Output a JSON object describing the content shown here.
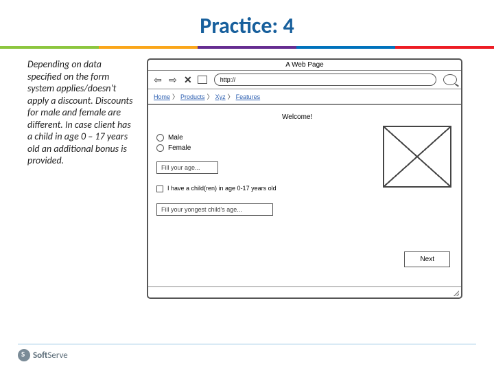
{
  "title": "Practice: 4",
  "description": "Depending on data specified on the form system applies/doesn't apply a discount. Discounts for male and female are different. In case client has a child in age 0 – 17 years old an additional bonus is provided.",
  "wireframe": {
    "window_title": "A Web Page",
    "url_text": "http://",
    "breadcrumbs": [
      "Home",
      "Products",
      "Xyz",
      "Features"
    ],
    "welcome": "Welcome!",
    "radio_male": "Male",
    "radio_female": "Female",
    "age_placeholder": "Fill your age...",
    "checkbox_label": "I have a child(ren) in age 0-17 years old",
    "child_age_placeholder": "Fill your yongest child's age...",
    "next_label": "Next"
  },
  "footer": {
    "brand_bold": "Soft",
    "brand_rest": "Serve"
  },
  "colors": {
    "title_color": "#175f9c",
    "wire_border": "#555555",
    "link_color": "#2a5db0"
  }
}
